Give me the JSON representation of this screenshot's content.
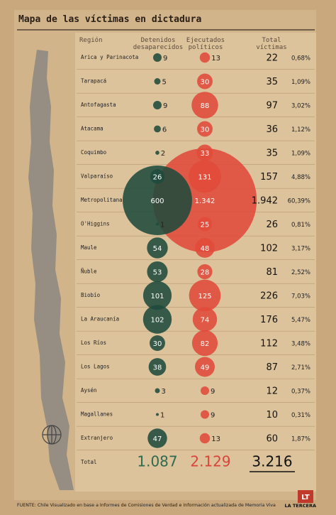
{
  "chart_data": {
    "type": "bubble-table",
    "title": "Mapa de las víctimas en dictadura",
    "region_header": "Región",
    "categories": [
      "Arica y Parinacota",
      "Tarapacá",
      "Antofagasta",
      "Atacama",
      "Coquimbo",
      "Valparaíso",
      "Metropolitana",
      "O'Higgins",
      "Maule",
      "Ñuble",
      "Biobío",
      "La Araucanía",
      "Los Ríos",
      "Los Lagos",
      "Aysén",
      "Magallanes",
      "Extranjero"
    ],
    "series": [
      {
        "name": "Detenidos desaparecidos",
        "color": "#1f4a3c",
        "values": [
          9,
          5,
          9,
          6,
          2,
          26,
          600,
          1,
          54,
          53,
          101,
          102,
          30,
          38,
          3,
          1,
          47
        ],
        "value_labels": [
          "9",
          "5",
          "9",
          "6",
          "2",
          "26",
          "600",
          "1",
          "54",
          "53",
          "101",
          "102",
          "30",
          "38",
          "3",
          "1",
          "47"
        ],
        "total": 1087,
        "total_label": "1.087",
        "total_color": "#2f6a4f"
      },
      {
        "name": "Ejecutados políticos",
        "color": "#e04a3a",
        "values": [
          13,
          30,
          88,
          30,
          33,
          131,
          1342,
          25,
          48,
          28,
          125,
          74,
          82,
          49,
          9,
          9,
          13
        ],
        "value_labels": [
          "13",
          "30",
          "88",
          "30",
          "33",
          "131",
          "1.342",
          "25",
          "48",
          "28",
          "125",
          "74",
          "82",
          "49",
          "9",
          "9",
          "13"
        ],
        "total": 2129,
        "total_label": "2.129",
        "total_color": "#d8453a"
      },
      {
        "name": "Total víctimas",
        "color": "#222222",
        "values": [
          22,
          35,
          97,
          36,
          35,
          157,
          1942,
          26,
          102,
          81,
          226,
          176,
          112,
          87,
          12,
          10,
          60
        ],
        "value_labels": [
          "22",
          "35",
          "97",
          "36",
          "35",
          "157",
          "1.942",
          "26",
          "102",
          "81",
          "226",
          "176",
          "112",
          "87",
          "12",
          "10",
          "60"
        ],
        "total": 3216,
        "total_label": "3.216",
        "total_color": "#111111"
      }
    ],
    "percentages": {
      "values": [
        0.68,
        1.09,
        3.02,
        1.12,
        1.09,
        4.88,
        60.39,
        0.81,
        3.17,
        2.52,
        7.03,
        5.47,
        3.48,
        2.71,
        0.37,
        0.31,
        1.87
      ],
      "value_labels": [
        "0,68%",
        "1,09%",
        "3,02%",
        "1,12%",
        "1,09%",
        "4,88%",
        "60,39%",
        "0,81%",
        "3,17%",
        "2,52%",
        "7,03%",
        "5,47%",
        "3,48%",
        "2,71%",
        "0,37%",
        "0,31%",
        "1,87%"
      ]
    },
    "total_row_label": "Total",
    "source": "FUENTE: Chile Visualizado en base a Informes de Comisiones de Verdad e Información actualizada de Memoria Viva",
    "logo": "LT",
    "brand": "LA TERCERA"
  }
}
